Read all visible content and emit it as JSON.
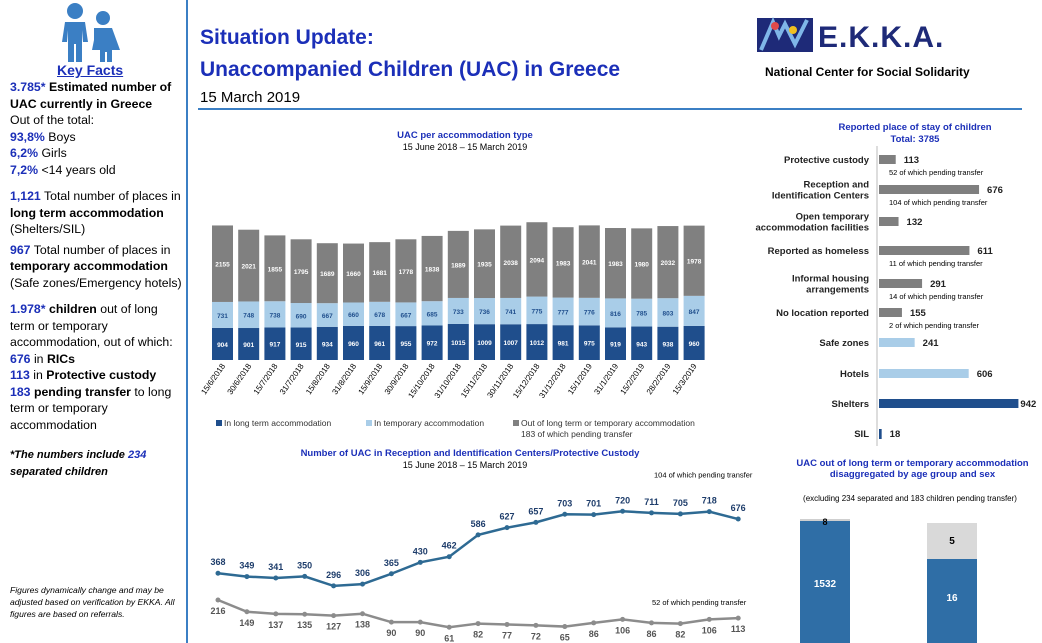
{
  "colors": {
    "long_term": "#1f4e8c",
    "temporary": "#a9cde8",
    "out": "#808080",
    "line1": "#2e6a93",
    "line2": "#8c8c8c",
    "accent": "#1b2fb8"
  },
  "sidebar": {
    "key_facts_title": "Key Facts",
    "f1_num": "3.785*",
    "f1_text": " Estimated number of UAC currently in Greece",
    "f2": "Out of the total:",
    "f3_num": "93,8%",
    "f3_text": " Boys",
    "f4_num": "6,2%",
    "f4_text": " Girls",
    "f5_num": "7,2%",
    "f5_text": " <14 years old",
    "f6_num": "1,121",
    "f6_text1": " Total number of places in ",
    "f6_bold": "long term accommodation",
    "f6_text2": " (Shelters/SIL)",
    "f7_num": "967",
    "f7_text1": " Total number of places in ",
    "f7_bold": "temporary accommodation",
    "f7_text2": " (Safe zones/Emergency hotels)",
    "f8_num": "1.978*",
    "f8_bold": " children",
    "f8_text": " out of long term or temporary accommodation, out of which:",
    "f9_num": "676",
    "f9_text": " in ",
    "f9_bold": "RICs",
    "f10_num": "113",
    "f10_text": " in ",
    "f10_bold": "Protective custody",
    "f11_num": "183",
    "f11_bold": " pending transfer",
    "f11_text": " to long term or temporary accommodation",
    "note1": "*The numbers include ",
    "note_num": "234",
    "note2": " separated children",
    "footnote": "Figures dynamically change and may be adjusted based on verification by EKKA. All figures are based on referrals."
  },
  "header": {
    "title1": "Situation Update:",
    "title2": "Unaccompanied Children (UAC) in Greece",
    "date": "15 March 2019",
    "logo_text": "E.K.K.A.",
    "logo_sub": "National Center for Social Solidarity"
  },
  "chart_data": [
    {
      "type": "bar",
      "stacked": true,
      "title": "UAC per accommodation type",
      "subtitle": "15 June 2018 – 15 March 2019",
      "categories": [
        "15/6/2018",
        "30/6/2018",
        "15/7/2018",
        "31/7/2018",
        "15/8/2018",
        "31/8/2018",
        "15/9/2018",
        "30/9/2018",
        "15/10/2018",
        "31/10/2018",
        "15/11/2018",
        "30/11/2018",
        "15/12/2018",
        "31/12/2018",
        "15/1/2019",
        "31/1/2019",
        "15/2/2019",
        "28/2/2019",
        "15/3/2019"
      ],
      "series": [
        {
          "name": "In long term accommodation",
          "values": [
            904,
            901,
            917,
            915,
            934,
            960,
            961,
            955,
            972,
            1015,
            1009,
            1007,
            1012,
            981,
            975,
            919,
            943,
            938,
            960
          ]
        },
        {
          "name": "In temporary accommodation",
          "values": [
            731,
            748,
            738,
            690,
            667,
            660,
            678,
            667,
            685,
            733,
            736,
            741,
            775,
            777,
            776,
            816,
            785,
            803,
            847
          ]
        },
        {
          "name": "Out of long term or temporary accommodation",
          "values": [
            2155,
            2021,
            1855,
            1795,
            1689,
            1660,
            1681,
            1778,
            1838,
            1889,
            1935,
            2038,
            2094,
            1983,
            2041,
            1983,
            1980,
            2032,
            1978
          ]
        }
      ],
      "note": "183 of which pending transfer"
    },
    {
      "type": "line",
      "title": "Number of UAC in Reception and Identification Centers/Protective Custody",
      "subtitle": "15 June 2018 – 15 March 2019",
      "series": [
        {
          "values": [
            368,
            349,
            341,
            350,
            296,
            306,
            365,
            430,
            462,
            586,
            627,
            657,
            703,
            701,
            720,
            711,
            705,
            718,
            676
          ]
        },
        {
          "values": [
            216,
            149,
            137,
            135,
            127,
            138,
            90,
            90,
            61,
            82,
            77,
            72,
            65,
            86,
            106,
            86,
            82,
            106,
            113
          ]
        }
      ],
      "annotations": [
        "104 of which pending transfer",
        "52 of which pending transfer"
      ]
    },
    {
      "type": "bar",
      "orientation": "horizontal",
      "title": "Reported place of stay of children",
      "subtitle": "Total: 3785",
      "categories": [
        "Protective custody",
        "Reception and Identification Centers",
        "Open temporary accommodation facilities",
        "Reported as homeless",
        "Informal housing arrangements",
        "No location reported",
        "Safe zones",
        "Hotels",
        "Shelters",
        "SIL"
      ],
      "values": [
        113,
        676,
        132,
        611,
        291,
        155,
        241,
        606,
        942,
        18
      ],
      "notes": [
        "52 of which pending transfer",
        "104 of which pending transfer",
        "",
        "11 of which pending transfer",
        "14 of which pending transfer",
        "2 of which pending transfer",
        "",
        "",
        "",
        ""
      ]
    },
    {
      "type": "bar",
      "stacked": true,
      "title": "UAC out of long term or temporary accommodation disaggregated by age group and sex",
      "subtitle": "(excluding 234 separated and 183 children pending transfer)",
      "columns": [
        {
          "values": [
            1532,
            8
          ]
        },
        {
          "values": [
            16,
            5
          ]
        }
      ]
    }
  ],
  "legend": [
    "In long term accommodation",
    "In temporary accommodation",
    "Out of long term or temporary accommodation"
  ]
}
